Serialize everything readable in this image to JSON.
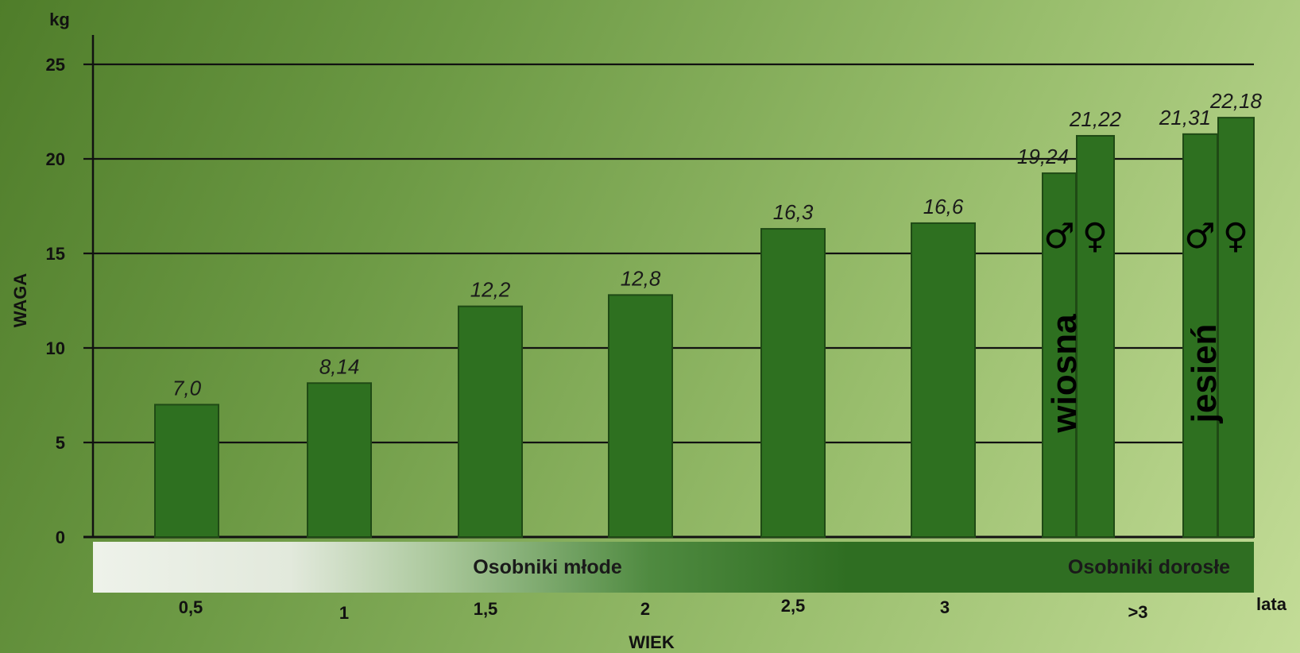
{
  "chart_data": {
    "type": "bar",
    "ylabel": "WAGA",
    "yunit": "kg",
    "xlabel": "WIEK",
    "xunit": "lata",
    "ylim": [
      0,
      25
    ],
    "yticks": [
      0,
      5,
      10,
      15,
      20,
      25
    ],
    "grid": true,
    "categories": [
      "0,5",
      "1",
      "1,5",
      "2",
      "2,5",
      "3",
      ">3"
    ],
    "bars": [
      {
        "category": "0,5",
        "value": 7.0,
        "label": "7,0"
      },
      {
        "category": "1",
        "value": 8.14,
        "label": "8,14"
      },
      {
        "category": "1,5",
        "value": 12.2,
        "label": "12,2"
      },
      {
        "category": "2",
        "value": 12.8,
        "label": "12,8"
      },
      {
        "category": "2,5",
        "value": 16.3,
        "label": "16,3"
      },
      {
        "category": "3",
        "value": 16.6,
        "label": "16,6"
      },
      {
        "category": ">3",
        "group": "wiosna",
        "sex": "♂",
        "value": 19.24,
        "label": "19,24"
      },
      {
        "category": ">3",
        "group": "wiosna",
        "sex": "♀",
        "value": 21.22,
        "label": "21,22"
      },
      {
        "category": ">3",
        "group": "jesień",
        "sex": "♂",
        "value": 21.31,
        "label": "21,31"
      },
      {
        "category": ">3",
        "group": "jesień",
        "sex": "♀",
        "value": 22.18,
        "label": "22,18"
      }
    ],
    "groups": [
      "wiosna",
      "jesień"
    ],
    "bands": [
      "Osobniki młode",
      "Osobniki dorosłe"
    ],
    "colors": {
      "bar": "#2e7020",
      "bar_edge": "#1f4a15",
      "band_dark": "#2f6e22",
      "band_light": "#eef2ea"
    }
  }
}
